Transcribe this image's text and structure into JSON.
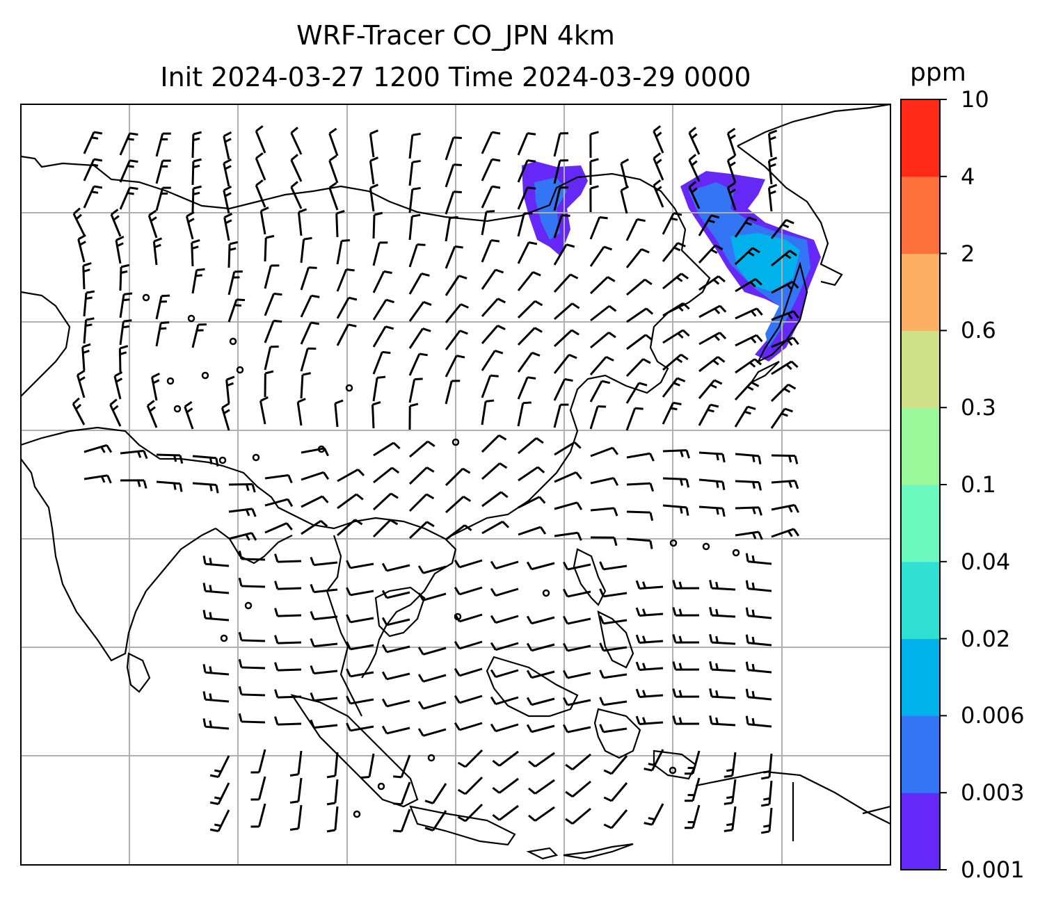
{
  "title": {
    "line1": "WRF-Tracer CO_JPN 4km",
    "line2": "Init 2024-03-27 1200 Time 2024-03-29 0000"
  },
  "colorbar": {
    "unit": "ppm",
    "levels": [
      "0.001",
      "0.003",
      "0.006",
      "0.02",
      "0.04",
      "0.1",
      "0.3",
      "0.6",
      "2",
      "4",
      "10"
    ],
    "colors": [
      "#6528f7",
      "#3375f5",
      "#00b1ec",
      "#2fe0d3",
      "#6bf9c0",
      "#9af99b",
      "#d0e088",
      "#fdb063",
      "#ff713c",
      "#ff2918"
    ]
  },
  "map": {
    "gridlines": true,
    "plume_colors": {
      "low": "#6528f7",
      "mid": "#3375f5",
      "high": "#00b1ec"
    }
  }
}
